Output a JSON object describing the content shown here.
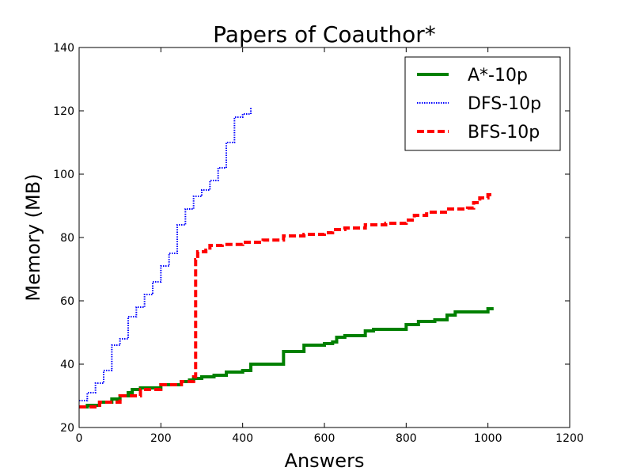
{
  "chart_data": {
    "type": "line",
    "title": "Papers of Coauthor*",
    "xlabel": "Answers",
    "ylabel": "Memory (MB)",
    "xlim": [
      0,
      1200
    ],
    "ylim": [
      20,
      140
    ],
    "xticks": [
      0,
      200,
      400,
      600,
      800,
      1000,
      1200
    ],
    "yticks": [
      20,
      40,
      60,
      80,
      100,
      120,
      140
    ],
    "grid": false,
    "legend_position": "top-right",
    "series": [
      {
        "name": "A*-10p",
        "color": "#008000",
        "style": "solid",
        "x": [
          0,
          20,
          50,
          80,
          100,
          120,
          130,
          150,
          200,
          250,
          270,
          280,
          300,
          330,
          360,
          400,
          420,
          500,
          550,
          600,
          620,
          630,
          650,
          700,
          720,
          800,
          830,
          870,
          900,
          920,
          1000,
          1010
        ],
        "y": [
          26.5,
          27,
          28,
          29,
          30,
          31,
          32,
          32.5,
          33.5,
          34.5,
          35,
          35.5,
          36,
          36.5,
          37.5,
          38,
          40,
          44,
          46,
          46.5,
          47,
          48.5,
          49,
          50.5,
          51,
          52.5,
          53.5,
          54,
          55.5,
          56.5,
          57.5,
          58
        ]
      },
      {
        "name": "DFS-10p",
        "color": "#0000ff",
        "style": "dotted",
        "x": [
          0,
          20,
          40,
          60,
          80,
          100,
          120,
          140,
          160,
          180,
          200,
          220,
          240,
          260,
          280,
          300,
          320,
          340,
          360,
          380,
          400,
          420
        ],
        "y": [
          28.5,
          31,
          34,
          38,
          46,
          48,
          55,
          58,
          62,
          66,
          71,
          75,
          84,
          89,
          93,
          95,
          98,
          102,
          110,
          118,
          119,
          121
        ]
      },
      {
        "name": "BFS-10p",
        "color": "#ff0000",
        "style": "dashed",
        "x": [
          0,
          50,
          100,
          150,
          200,
          250,
          280,
          285,
          290,
          310,
          320,
          350,
          400,
          450,
          500,
          550,
          600,
          620,
          650,
          700,
          750,
          800,
          820,
          850,
          900,
          950,
          965,
          980,
          1000,
          1010
        ],
        "y": [
          26.5,
          28,
          30,
          32,
          33.5,
          34.5,
          36,
          73,
          75.5,
          76,
          77.5,
          77.8,
          78.5,
          79.2,
          80.5,
          81,
          81.5,
          82.5,
          83,
          84,
          84.5,
          85.5,
          87,
          88,
          89,
          89.3,
          91,
          92.5,
          93.5,
          94
        ]
      }
    ]
  }
}
